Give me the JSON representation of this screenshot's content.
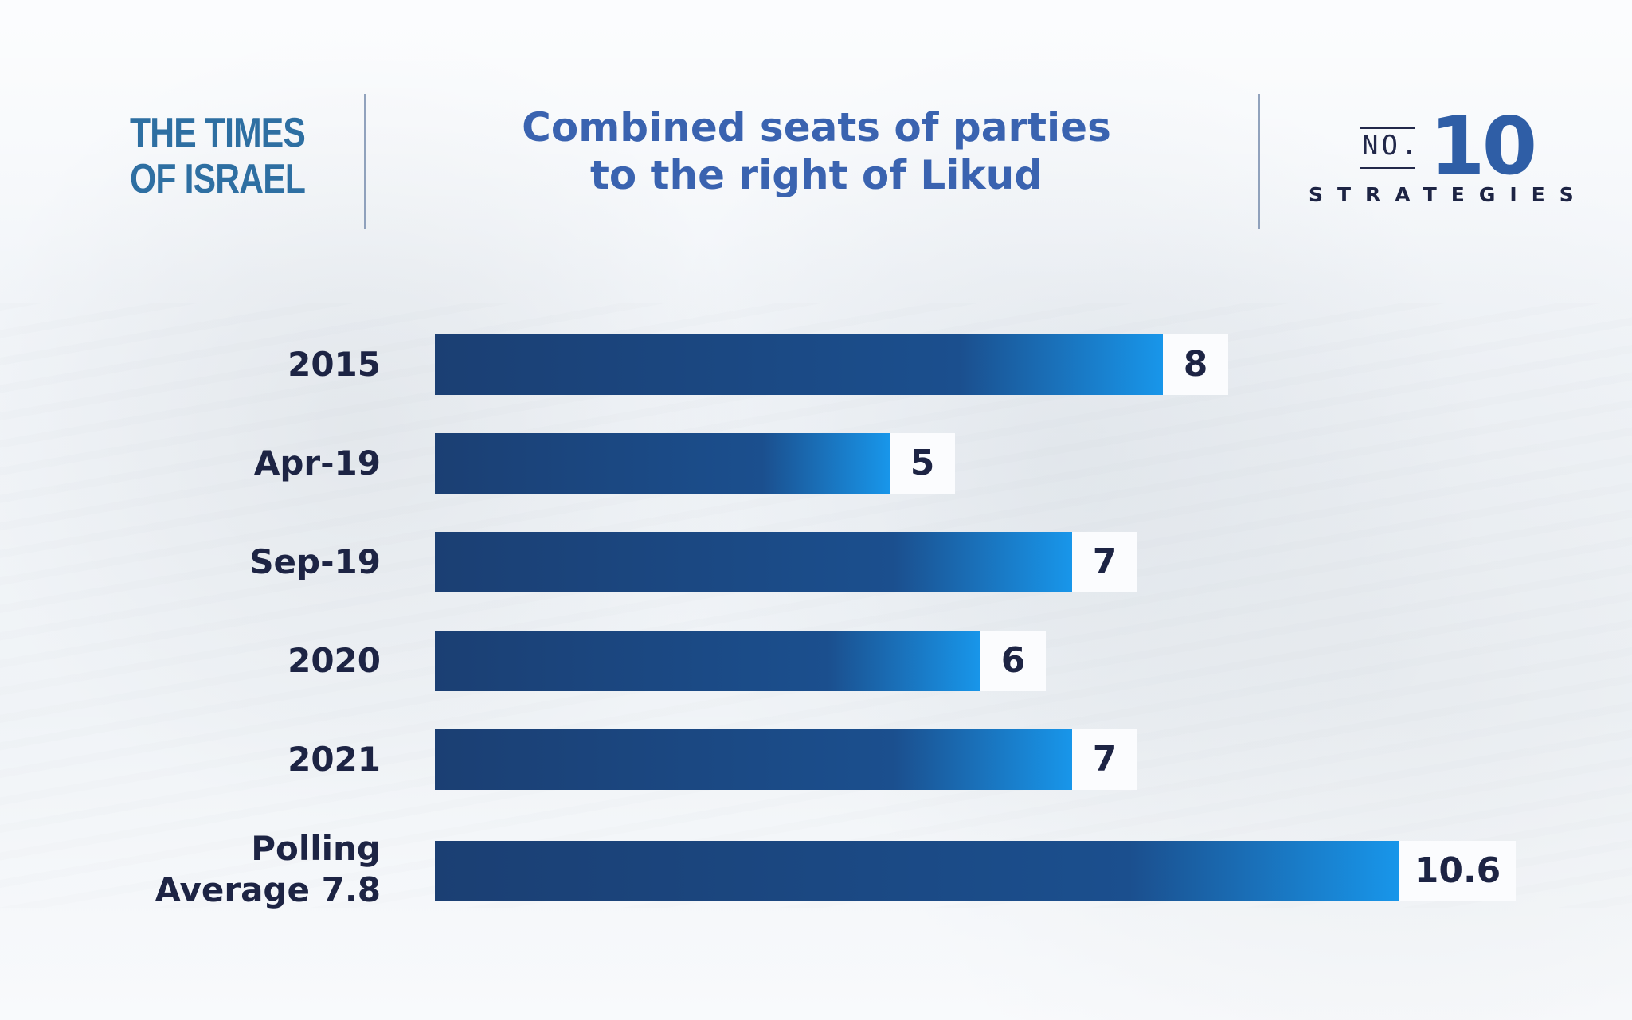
{
  "header": {
    "logo_line_1": "THE TIMES",
    "logo_line_2": "OF ISRAEL",
    "title_line_1": "Combined seats of parties",
    "title_line_2": "to the right of Likud",
    "brand_prefix": "NO.",
    "brand_number": "10",
    "brand_subtitle": "STRATEGIES"
  },
  "chart_data": {
    "type": "bar",
    "orientation": "horizontal",
    "title": "Combined seats of parties to the right of Likud",
    "categories": [
      "2015",
      "Apr-19",
      "Sep-19",
      "2020",
      "2021",
      "Polling Average 7.8"
    ],
    "values": [
      8,
      5,
      7,
      6,
      7,
      10.6
    ],
    "value_labels": [
      "8",
      "5",
      "7",
      "6",
      "7",
      "10.6"
    ],
    "xlim": [
      0,
      10.6
    ],
    "grid": false,
    "legend": "none",
    "colors": {
      "bar_start": "#1b3f73",
      "bar_mid": "#1b4f8e",
      "bar_end": "#1896ea",
      "label_box": "#fbfcfe",
      "text": "#1d2444",
      "title": "#3a63b0"
    }
  }
}
